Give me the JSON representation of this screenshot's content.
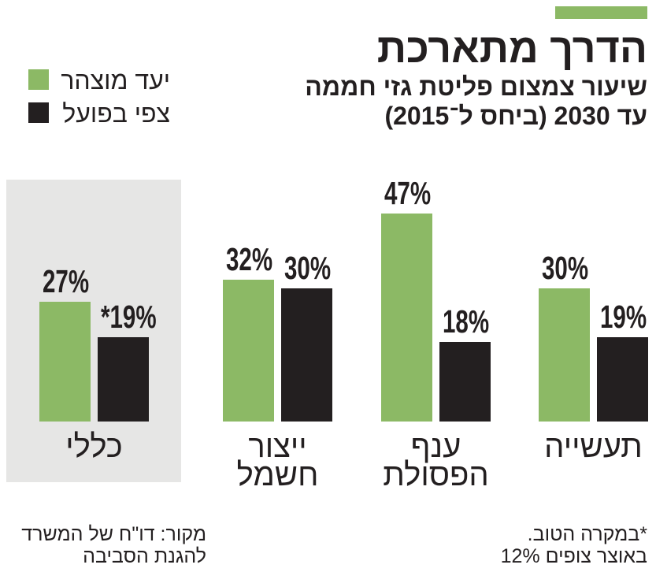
{
  "accent_color": "#8cb965",
  "chart_data": {
    "type": "bar",
    "title": "הדרך מתארכת",
    "subtitle_lines": [
      "שיעור צמצום פליטת גזי חממה",
      "עד 2030 (ביחס ל־2015)"
    ],
    "categories": [
      "תעשייה",
      "ענף הפסולת",
      "ייצור חשמל",
      "כללי"
    ],
    "series": [
      {
        "name": "יעד מוצהר",
        "values": [
          30,
          47,
          32,
          27
        ],
        "labels": [
          "30%",
          "47%",
          "32%",
          "27%"
        ],
        "color": "#8cb965"
      },
      {
        "name": "צפי בפועל",
        "values": [
          19,
          18,
          30,
          19
        ],
        "labels": [
          "19%",
          "18%",
          "30%",
          "*19%"
        ],
        "color": "#231f20"
      }
    ],
    "legend_position": "top-left",
    "grid": false,
    "highlight": {
      "category_index": 3,
      "color": "#e6e6e5"
    },
    "footnote_lines": [
      "*במקרה הטוב.",
      "באוצר צופים 12%"
    ],
    "source_lines": [
      "מקור: דו\"ח של המשרד",
      "להגנת הסביבה"
    ]
  }
}
